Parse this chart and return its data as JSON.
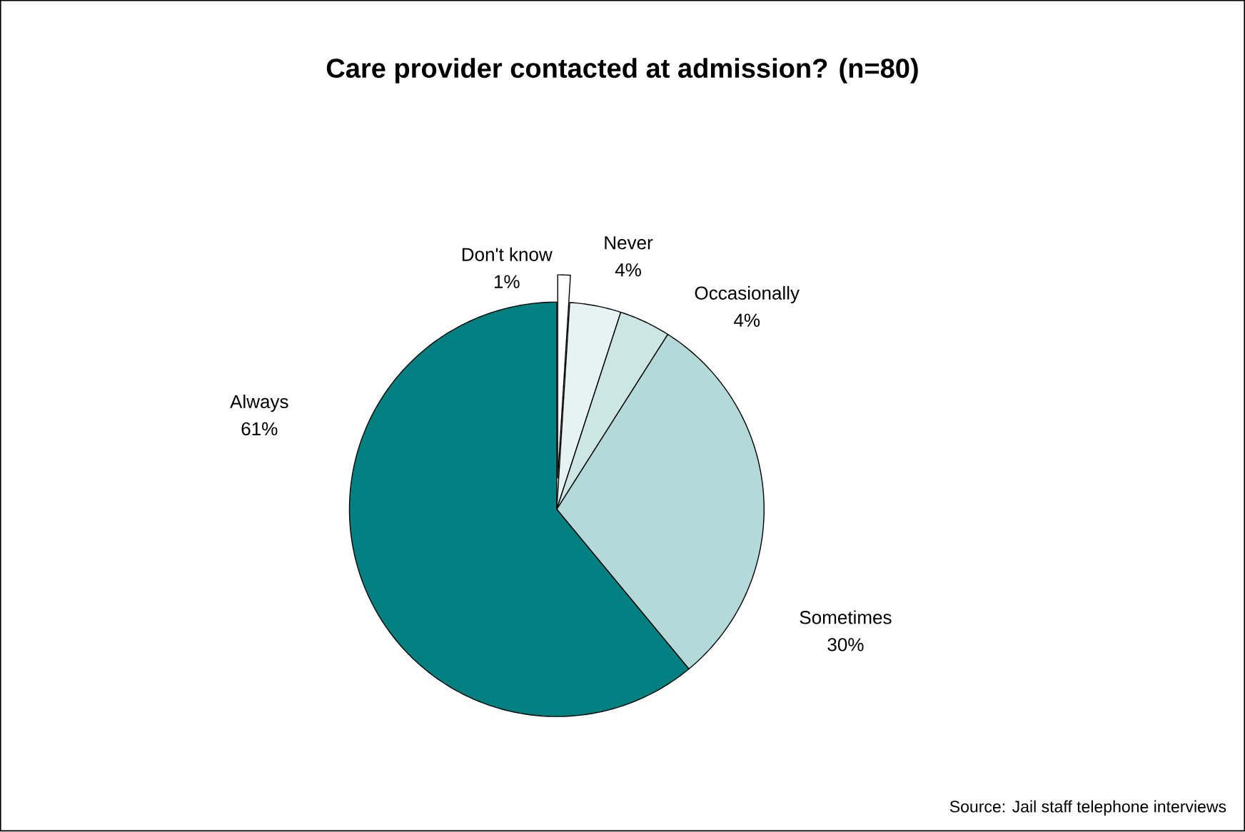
{
  "chart_data": {
    "type": "pie",
    "title": "Care provider contacted at admission? (n=80)",
    "categories": [
      "Don't know",
      "Never",
      "Occasionally",
      "Sometimes",
      "Always"
    ],
    "values": [
      1,
      4,
      4,
      30,
      61
    ],
    "value_labels": [
      "1%",
      "4%",
      "4%",
      "30%",
      "61%"
    ],
    "colors": [
      "#ffffff",
      "#e6f3f3",
      "#cce6e6",
      "#b3d9d9",
      "#008080"
    ],
    "annotations": [
      "Source: Jail staff telephone interviews"
    ]
  }
}
